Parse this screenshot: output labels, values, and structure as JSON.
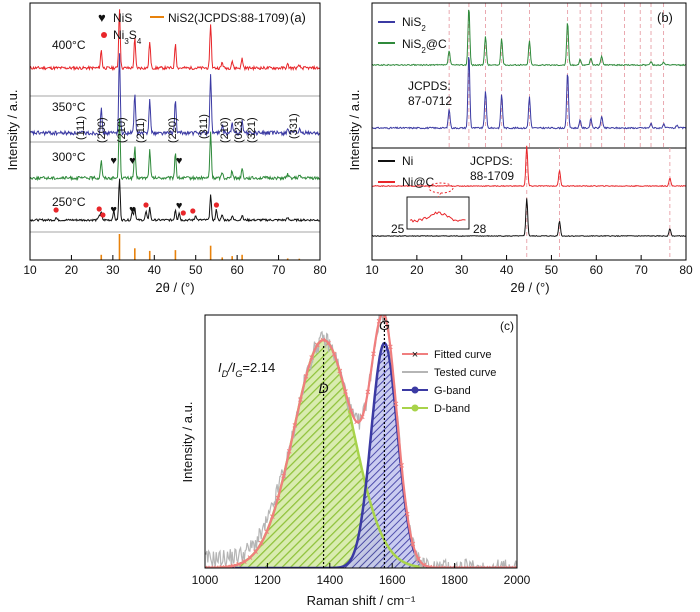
{
  "figure": {
    "colors": {
      "red": "#e8262a",
      "blue": "#3b3aa3",
      "green": "#2f8a3b",
      "black": "#111111",
      "orange": "#e8820c",
      "pinkline": "#e8a0a8",
      "lightgreen": "#a8d34a",
      "gray": "#b5b5b5",
      "salmon": "#f07e7e"
    }
  },
  "chart_data": [
    {
      "panel": "a",
      "type": "line",
      "panel_label": "(a)",
      "xlabel": "2θ / (°)",
      "ylabel": "Intensity / a.u.",
      "xlim": [
        10,
        80
      ],
      "xticks": [
        10,
        20,
        30,
        40,
        50,
        60,
        70,
        80
      ],
      "legend": {
        "nis": "NiS",
        "ni3s4": "Ni3S4",
        "nis2": "NiS2(JCPDS:88-1709)"
      },
      "series": [
        {
          "name": "400°C",
          "color": "red",
          "peaks": [
            [
              27.2,
              0.3
            ],
            [
              31.6,
              1.0
            ],
            [
              35.3,
              0.5
            ],
            [
              38.9,
              0.45
            ],
            [
              45.1,
              0.42
            ],
            [
              53.6,
              0.75
            ],
            [
              56.4,
              0.1
            ],
            [
              58.8,
              0.12
            ],
            [
              61.2,
              0.16
            ],
            [
              72.2,
              0.06
            ],
            [
              75.0,
              0.04
            ]
          ]
        },
        {
          "name": "350°C",
          "color": "blue",
          "peaks": [
            [
              27.2,
              0.3
            ],
            [
              31.6,
              1.0
            ],
            [
              35.3,
              0.5
            ],
            [
              38.9,
              0.45
            ],
            [
              45.1,
              0.42
            ],
            [
              53.6,
              0.75
            ],
            [
              56.4,
              0.1
            ],
            [
              58.8,
              0.12
            ],
            [
              61.2,
              0.16
            ],
            [
              72.2,
              0.06
            ],
            [
              75.0,
              0.04
            ]
          ]
        },
        {
          "name": "300°C",
          "color": "green",
          "peaks": [
            [
              27.2,
              0.3
            ],
            [
              31.6,
              1.0
            ],
            [
              35.3,
              0.5
            ],
            [
              38.9,
              0.45
            ],
            [
              45.1,
              0.42
            ],
            [
              53.6,
              0.75
            ],
            [
              56.4,
              0.1
            ],
            [
              58.8,
              0.12
            ],
            [
              61.2,
              0.16
            ],
            [
              72.2,
              0.06
            ],
            [
              75.0,
              0.04
            ]
          ]
        },
        {
          "name": "250°C",
          "color": "black",
          "peaks": [
            [
              16.3,
              0.06
            ],
            [
              26.7,
              0.12
            ],
            [
              27.2,
              0.18
            ],
            [
              30.2,
              0.22
            ],
            [
              31.6,
              1.0
            ],
            [
              34.7,
              0.22
            ],
            [
              35.3,
              0.3
            ],
            [
              38.0,
              0.2
            ],
            [
              38.9,
              0.3
            ],
            [
              45.1,
              0.25
            ],
            [
              46.0,
              0.18
            ],
            [
              50.0,
              0.12
            ],
            [
              53.6,
              0.6
            ],
            [
              55.0,
              0.25
            ],
            [
              56.4,
              0.12
            ],
            [
              58.8,
              0.1
            ],
            [
              61.2,
              0.12
            ],
            [
              72.2,
              0.05
            ]
          ]
        }
      ],
      "hkl": [
        "(111)",
        "(200)",
        "(210)",
        "(211)",
        "(220)",
        "(311)",
        "(210)",
        "(023)",
        "(321)",
        "(331)"
      ],
      "nis2_reference": [
        [
          27.2,
          0.2
        ],
        [
          31.6,
          1.0
        ],
        [
          35.3,
          0.45
        ],
        [
          38.9,
          0.35
        ],
        [
          45.1,
          0.38
        ],
        [
          53.6,
          0.55
        ],
        [
          56.4,
          0.1
        ],
        [
          58.8,
          0.15
        ],
        [
          61.2,
          0.2
        ],
        [
          72.2,
          0.06
        ],
        [
          75.0,
          0.05
        ]
      ]
    },
    {
      "panel": "b",
      "type": "line",
      "panel_label": "(b)",
      "xlabel": "2θ / (°)",
      "ylabel": "Intensity / a.u.",
      "xlim": [
        10,
        80
      ],
      "xticks": [
        10,
        20,
        30,
        40,
        50,
        60,
        70,
        80
      ],
      "series": [
        {
          "name": "NiS2",
          "color": "blue",
          "peaks": [
            [
              27.2,
              0.25
            ],
            [
              31.6,
              1.0
            ],
            [
              35.3,
              0.5
            ],
            [
              38.9,
              0.45
            ],
            [
              45.1,
              0.42
            ],
            [
              53.6,
              0.75
            ],
            [
              56.4,
              0.1
            ],
            [
              58.8,
              0.12
            ],
            [
              61.2,
              0.16
            ],
            [
              72.2,
              0.06
            ],
            [
              75.0,
              0.05
            ],
            [
              78.0,
              0.04
            ]
          ]
        },
        {
          "name": "NiS2@C",
          "color": "green",
          "peaks": [
            [
              27.2,
              0.25
            ],
            [
              31.6,
              1.0
            ],
            [
              35.3,
              0.5
            ],
            [
              38.9,
              0.45
            ],
            [
              45.1,
              0.42
            ],
            [
              53.6,
              0.75
            ],
            [
              56.4,
              0.1
            ],
            [
              58.8,
              0.12
            ],
            [
              61.2,
              0.16
            ],
            [
              72.2,
              0.06
            ],
            [
              75.0,
              0.05
            ]
          ]
        },
        {
          "name": "Ni",
          "color": "black",
          "peaks": [
            [
              44.5,
              1.0
            ],
            [
              51.8,
              0.4
            ],
            [
              76.4,
              0.2
            ]
          ]
        },
        {
          "name": "Ni@C",
          "color": "red",
          "peaks": [
            [
              44.5,
              1.0
            ],
            [
              51.8,
              0.4
            ],
            [
              76.4,
              0.2
            ]
          ]
        }
      ],
      "annotations": {
        "jcpds_top": "JCPDS:",
        "jcpds_top_num": "87-0712",
        "jcpds_bottom": "JCPDS:",
        "jcpds_bottom_num": "88-1709",
        "inset_left": "25",
        "inset_right": "28"
      },
      "reference_lines": [
        27.2,
        31.6,
        35.3,
        38.9,
        45.1,
        53.6,
        56.4,
        58.8,
        61.2,
        66.3,
        69.8,
        72.2,
        75.0
      ]
    },
    {
      "panel": "c",
      "type": "area",
      "panel_label": "(c)",
      "xlabel": "Raman shift / cm⁻¹",
      "ylabel": "Intensity / a.u.",
      "xlim": [
        1000,
        2000
      ],
      "xticks": [
        1000,
        1200,
        1400,
        1600,
        1800,
        2000
      ],
      "ratio_label": "I",
      "ratio_sub_d": "D",
      "ratio_slash": "/I",
      "ratio_sub_g": "G",
      "ratio_value": "=2.14",
      "d_label": "D",
      "g_label": "G",
      "d_band": {
        "center": 1380,
        "sigma": 95,
        "amplitude": 0.76
      },
      "g_band": {
        "center": 1575,
        "sigma": 42,
        "amplitude": 0.75
      },
      "series": [
        {
          "name": "Fitted curve",
          "color": "salmon"
        },
        {
          "name": "Tested curve",
          "color": "gray"
        },
        {
          "name": "G-band",
          "color": "blue"
        },
        {
          "name": "D-band",
          "color": "lightgreen"
        }
      ]
    }
  ]
}
